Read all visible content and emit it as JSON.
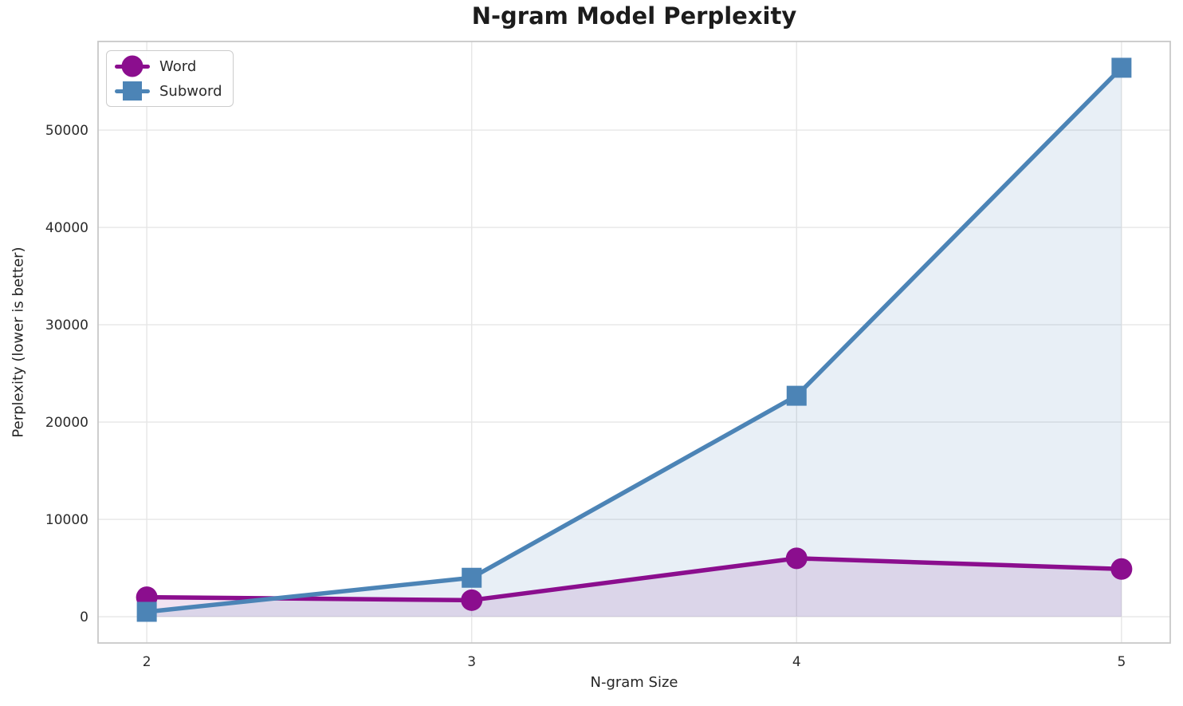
{
  "title": "N-gram Model Perplexity",
  "chart_data": {
    "type": "line",
    "title": "N-gram Model Perplexity",
    "xlabel": "N-gram Size",
    "ylabel": "Perplexity (lower is better)",
    "x": [
      2,
      3,
      4,
      5
    ],
    "x_tick_labels": [
      "2",
      "3",
      "4",
      "5"
    ],
    "y_ticks": [
      0,
      10000,
      20000,
      30000,
      40000,
      50000
    ],
    "y_tick_labels": [
      "0",
      "10000",
      "20000",
      "30000",
      "40000",
      "50000"
    ],
    "xlim": [
      1.85,
      5.15
    ],
    "ylim": [
      -2700,
      59100
    ],
    "grid": true,
    "area_fill": true,
    "fill_baseline": 0,
    "legend_position": "upper left",
    "series": [
      {
        "name": "Word",
        "marker": "circle",
        "color": "#8B0E8E",
        "fill_color": "rgba(139, 14, 142, 0.12)",
        "values": [
          2000,
          1700,
          6000,
          4900
        ]
      },
      {
        "name": "Subword",
        "marker": "square",
        "color": "#4C84B6",
        "fill_color": "rgba(76, 132, 182, 0.13)",
        "values": [
          500,
          4000,
          22700,
          56400
        ]
      }
    ],
    "colors": {
      "grid": "#e6e6e6",
      "spine": "#c8c8c8",
      "tick_label": "#2b2b2b",
      "title": "#1c1c1c"
    }
  }
}
